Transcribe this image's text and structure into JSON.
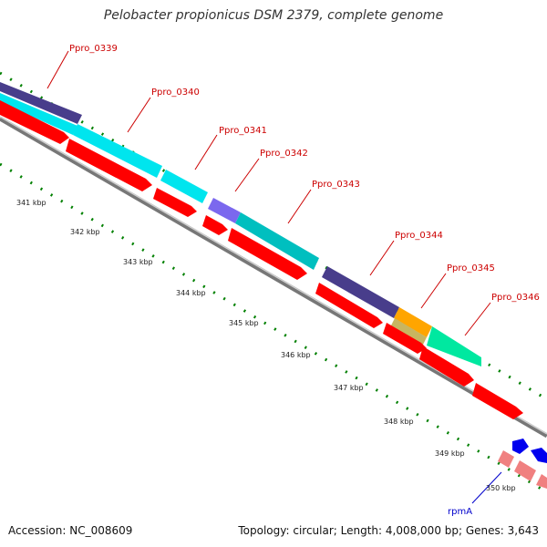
{
  "title": "Pelobacter propionicus DSM 2379, complete genome",
  "accession": "Accession: NC_008609",
  "summary": "Topology: circular; Length: 4,008,000 bp; Genes: 3,643",
  "colors": {
    "cds_red": "#ff0000",
    "cds_pink": "#f08080",
    "backbone": "#888888",
    "cyan": "#00e5ee",
    "teal": "#00bfbf",
    "navy": "#483d8b",
    "purple": "#7b68ee",
    "orange": "#ffa500",
    "tan": "#c8b560",
    "aqua_green": "#00e8a0",
    "rna_blue": "#0000ee",
    "tick_green": "#008000",
    "label_red": "#cc0000",
    "label_blue": "#0000cc"
  },
  "gene_labels": [
    "Ppro_0339",
    "Ppro_0340",
    "Ppro_0341",
    "Ppro_0342",
    "Ppro_0343",
    "Ppro_0344",
    "Ppro_0345",
    "Ppro_0346"
  ],
  "rna_label": "rpmA",
  "tick_labels": [
    "341 kbp",
    "342 kbp",
    "343 kbp",
    "344 kbp",
    "345 kbp",
    "346 kbp",
    "347 kbp",
    "348 kbp",
    "349 kbp",
    "350 kbp"
  ]
}
